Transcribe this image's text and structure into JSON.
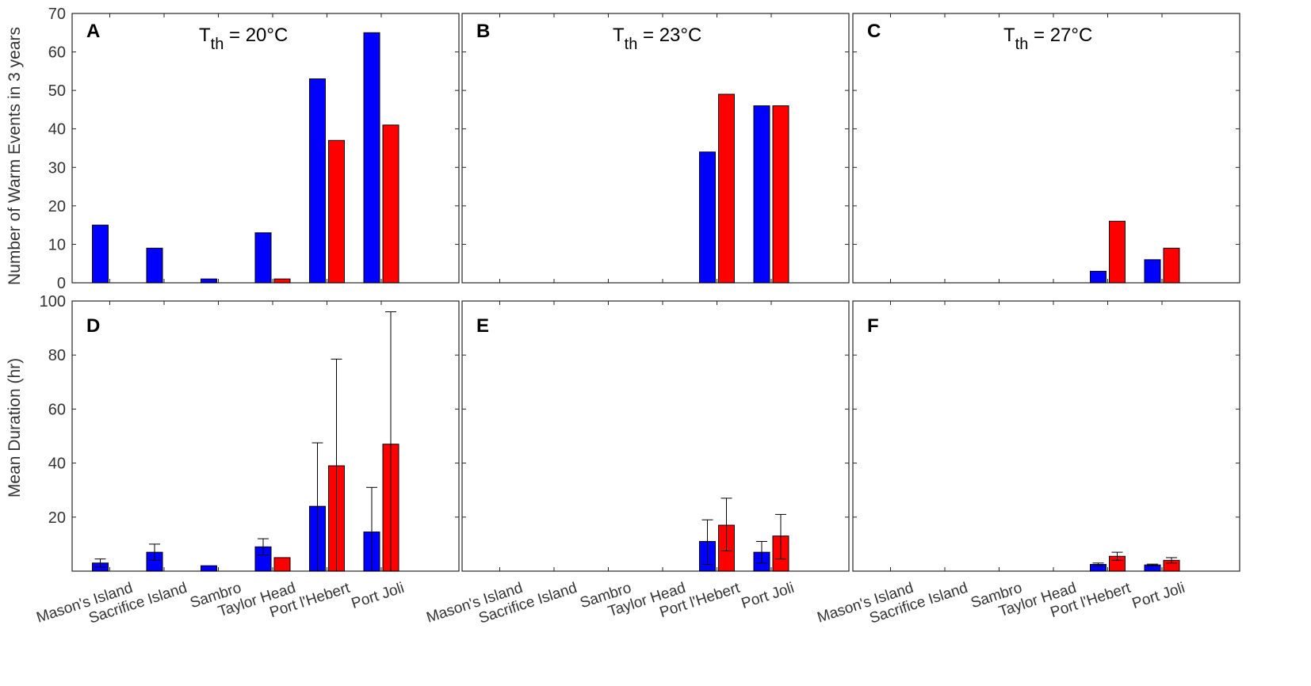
{
  "figure": {
    "top_ylabel": "Number of Warm Events in 3 years",
    "bottom_ylabel": "Mean Duration (hr)",
    "categories": [
      "Mason's Island",
      "Sacrifice Island",
      "Sambro",
      "Taylor Head",
      "Port l'Hebert",
      "Port Joli"
    ],
    "colors": {
      "blue": "#0000ff",
      "red": "#ff0000",
      "axis": "#262626",
      "text": "#333333"
    }
  },
  "chart_data": [
    {
      "panel": "A",
      "type": "bar",
      "row": "top",
      "threshold": "20",
      "title_prefix": "T",
      "title_sub": "th",
      "title_suffix": " = 20°C",
      "ylim": [
        0,
        70
      ],
      "yticks": [
        "0",
        "10",
        "20",
        "30",
        "40",
        "50",
        "60",
        "70"
      ],
      "categories": [
        "Mason's Island",
        "Sacrifice Island",
        "Sambro",
        "Taylor Head",
        "Port l'Hebert",
        "Port Joli"
      ],
      "series": [
        {
          "name": "blue",
          "values": [
            15,
            9,
            1,
            13,
            53,
            65
          ]
        },
        {
          "name": "red",
          "values": [
            null,
            null,
            null,
            1,
            37,
            41
          ]
        }
      ]
    },
    {
      "panel": "B",
      "type": "bar",
      "row": "top",
      "threshold": "23",
      "title_prefix": "T",
      "title_sub": "th",
      "title_suffix": " = 23°C",
      "ylim": [
        0,
        70
      ],
      "categories": [
        "Mason's Island",
        "Sacrifice Island",
        "Sambro",
        "Taylor Head",
        "Port l'Hebert",
        "Port Joli"
      ],
      "series": [
        {
          "name": "blue",
          "values": [
            null,
            null,
            null,
            null,
            34,
            46
          ]
        },
        {
          "name": "red",
          "values": [
            null,
            null,
            null,
            null,
            49,
            46
          ]
        }
      ]
    },
    {
      "panel": "C",
      "type": "bar",
      "row": "top",
      "threshold": "27",
      "title_prefix": "T",
      "title_sub": "th",
      "title_suffix": " = 27°C",
      "ylim": [
        0,
        70
      ],
      "categories": [
        "Mason's Island",
        "Sacrifice Island",
        "Sambro",
        "Taylor Head",
        "Port l'Hebert",
        "Port Joli"
      ],
      "series": [
        {
          "name": "blue",
          "values": [
            null,
            null,
            null,
            null,
            3,
            6
          ]
        },
        {
          "name": "red",
          "values": [
            null,
            null,
            null,
            null,
            16,
            9
          ]
        }
      ]
    },
    {
      "panel": "D",
      "type": "bar",
      "row": "bottom",
      "ylim": [
        0,
        100
      ],
      "yticks": [
        "20",
        "40",
        "60",
        "80",
        "100"
      ],
      "categories": [
        "Mason's Island",
        "Sacrifice Island",
        "Sambro",
        "Taylor Head",
        "Port l'Hebert",
        "Port Joli"
      ],
      "series": [
        {
          "name": "blue",
          "values": [
            3,
            7,
            2,
            9,
            24,
            14.5
          ],
          "err_low": [
            1.5,
            4,
            null,
            6,
            0,
            0
          ],
          "err_high": [
            4.5,
            10,
            null,
            12,
            47.5,
            31
          ]
        },
        {
          "name": "red",
          "values": [
            null,
            null,
            null,
            5,
            39,
            47
          ],
          "err_low": [
            null,
            null,
            null,
            null,
            0,
            0
          ],
          "err_high": [
            null,
            null,
            null,
            null,
            78.5,
            96
          ]
        }
      ]
    },
    {
      "panel": "E",
      "type": "bar",
      "row": "bottom",
      "ylim": [
        0,
        100
      ],
      "categories": [
        "Mason's Island",
        "Sacrifice Island",
        "Sambro",
        "Taylor Head",
        "Port l'Hebert",
        "Port Joli"
      ],
      "series": [
        {
          "name": "blue",
          "values": [
            null,
            null,
            null,
            null,
            11,
            7
          ],
          "err_low": [
            null,
            null,
            null,
            null,
            2.5,
            3
          ],
          "err_high": [
            null,
            null,
            null,
            null,
            19,
            11
          ]
        },
        {
          "name": "red",
          "values": [
            null,
            null,
            null,
            null,
            17,
            13
          ],
          "err_low": [
            null,
            null,
            null,
            null,
            7.5,
            4.5
          ],
          "err_high": [
            null,
            null,
            null,
            null,
            27,
            21
          ]
        }
      ]
    },
    {
      "panel": "F",
      "type": "bar",
      "row": "bottom",
      "ylim": [
        0,
        100
      ],
      "categories": [
        "Mason's Island",
        "Sacrifice Island",
        "Sambro",
        "Taylor Head",
        "Port l'Hebert",
        "Port Joli"
      ],
      "series": [
        {
          "name": "blue",
          "values": [
            null,
            null,
            null,
            null,
            2.5,
            2.3
          ],
          "err_low": [
            null,
            null,
            null,
            null,
            2,
            2
          ],
          "err_high": [
            null,
            null,
            null,
            null,
            3,
            2.6
          ]
        },
        {
          "name": "red",
          "values": [
            null,
            null,
            null,
            null,
            5.5,
            4
          ],
          "err_low": [
            null,
            null,
            null,
            null,
            4,
            3
          ],
          "err_high": [
            null,
            null,
            null,
            null,
            7,
            5
          ]
        }
      ]
    }
  ]
}
